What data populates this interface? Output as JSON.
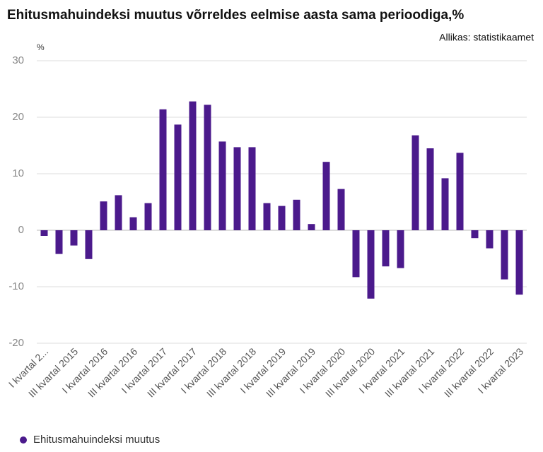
{
  "chart_data": {
    "type": "bar",
    "title": "Ehitusmahuindeksi muutus võrreldes eelmise aasta sama perioodiga,%",
    "source": "Allikas: statistikaamet",
    "y_unit": "%",
    "categories": [
      "I kvartal 2...",
      null,
      "III kvartal 2015",
      null,
      "I kvartal 2016",
      null,
      "III kvartal 2016",
      null,
      "I kvartal 2017",
      null,
      "III kvartal 2017",
      null,
      "I kvartal 2018",
      null,
      "III kvartal 2018",
      null,
      "I kvartal 2019",
      null,
      "III kvartal 2019",
      null,
      "I kvartal 2020",
      null,
      "III kvartal 2020",
      null,
      "I kvartal 2021",
      null,
      "III kvartal 2021",
      null,
      "I kvartal 2022",
      null,
      "III kvartal 2022",
      null,
      "I kvartal 2023"
    ],
    "series": [
      {
        "name": "Ehitusmahuindeksi muutus",
        "color": "#4b1a8c",
        "values": [
          -1,
          -4.2,
          -2.7,
          -5.1,
          5.1,
          6.2,
          2.3,
          4.8,
          21.4,
          18.7,
          22.8,
          22.2,
          15.7,
          14.7,
          14.7,
          4.8,
          4.3,
          5.4,
          1.1,
          12.1,
          7.3,
          -8.3,
          -12.1,
          -6.4,
          -6.7,
          16.8,
          14.5,
          9.2,
          13.7,
          -1.4,
          -3.2,
          -8.7,
          -11.4
        ]
      }
    ],
    "ylim": [
      -20,
      30
    ],
    "yticks": [
      -20,
      -10,
      0,
      10,
      20,
      30
    ],
    "grid": true
  }
}
